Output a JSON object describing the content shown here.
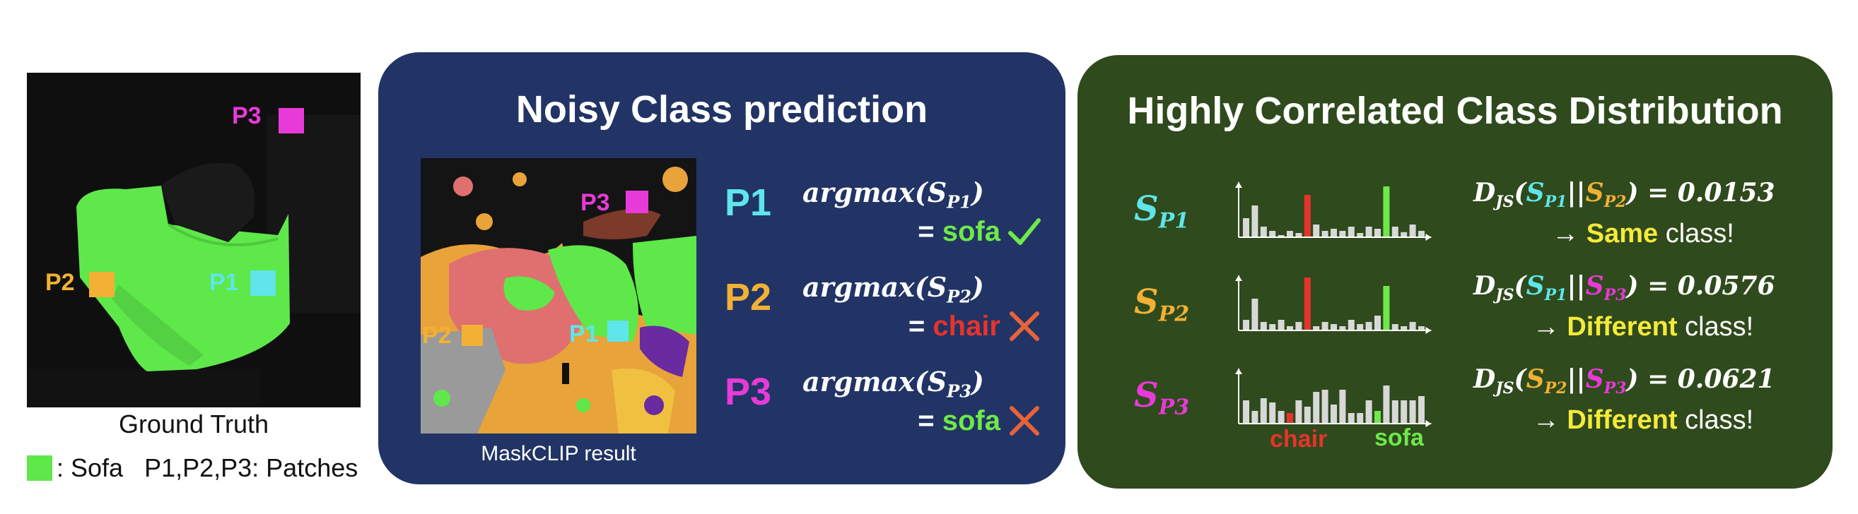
{
  "ground_truth": {
    "caption": "Ground Truth",
    "patches": [
      {
        "label": "P3",
        "color": "#e83ad8"
      },
      {
        "label": "P2",
        "color": "#f2b134"
      },
      {
        "label": "P1",
        "color": "#5ee6ea"
      }
    ],
    "legend": {
      "swatch_color": "#5ee84a",
      "sofa_label": ": Sofa",
      "patches_label": "P1,P2,P3: Patches"
    }
  },
  "noisy_panel": {
    "title": "Noisy Class prediction",
    "mask_caption": "MaskCLIP result",
    "mask_patches": [
      "P3",
      "P2",
      "P1"
    ],
    "predictions": [
      {
        "patch": "P1",
        "func": "argmax",
        "arg": "S",
        "sub": "P1",
        "eq": "=",
        "result": "sofa",
        "correct": true,
        "patch_color": "#5ee6ea",
        "result_color": "#6ee84a"
      },
      {
        "patch": "P2",
        "func": "argmax",
        "arg": "S",
        "sub": "P2",
        "eq": "=",
        "result": "chair",
        "correct": false,
        "patch_color": "#f2b134",
        "result_color": "#e6342b"
      },
      {
        "patch": "P3",
        "func": "argmax",
        "arg": "S",
        "sub": "P3",
        "eq": "=",
        "result": "sofa",
        "correct": false,
        "patch_color": "#e83ad8",
        "result_color": "#6ee84a"
      }
    ]
  },
  "correlated_panel": {
    "title": "Highly Correlated Class Distribution",
    "rows": [
      {
        "dist": "S",
        "dist_sub": "P1",
        "dist_color": "#5ee6ea",
        "js_symbol": "D",
        "js_sub": "JS",
        "js_a": "S",
        "js_a_sub": "P1",
        "js_a_color": "#5ee6ea",
        "js_sep": "||",
        "js_b": "S",
        "js_b_sub": "P2",
        "js_b_color": "#f2b134",
        "js_value": "= 0.0153",
        "arrow": "→",
        "word": "Same",
        "tail": "class!"
      },
      {
        "dist": "S",
        "dist_sub": "P2",
        "dist_color": "#f2b134",
        "js_symbol": "D",
        "js_sub": "JS",
        "js_a": "S",
        "js_a_sub": "P1",
        "js_a_color": "#5ee6ea",
        "js_sep": "||",
        "js_b": "S",
        "js_b_sub": "P3",
        "js_b_color": "#e83ad8",
        "js_value": "= 0.0576",
        "arrow": "→",
        "word": "Different",
        "tail": "class!"
      },
      {
        "dist": "S",
        "dist_sub": "P3",
        "dist_color": "#e83ad8",
        "js_symbol": "D",
        "js_sub": "JS",
        "js_a": "S",
        "js_a_sub": "P2",
        "js_a_color": "#f2b134",
        "js_sep": "||",
        "js_b": "S",
        "js_b_sub": "P3",
        "js_b_color": "#e83ad8",
        "js_value": "= 0.0621",
        "arrow": "→",
        "word": "Different",
        "tail": "class!"
      }
    ],
    "axis_labels": {
      "chair": "chair",
      "sofa": "sofa"
    },
    "histograms": [
      {
        "values": [
          0.45,
          0.75,
          0.25,
          0.15,
          0.05,
          0.15,
          0.1,
          1.0,
          0.3,
          0.15,
          0.2,
          0.15,
          0.25,
          0.1,
          0.25,
          0.2,
          1.2,
          0.25,
          0.12,
          0.3,
          0.15
        ],
        "highlight": {
          "7": "#e6342b",
          "16": "#6ee84a"
        }
      },
      {
        "values": [
          0.25,
          0.75,
          0.2,
          0.15,
          0.25,
          0.1,
          0.2,
          1.25,
          0.1,
          0.2,
          0.15,
          0.1,
          0.25,
          0.15,
          0.2,
          0.35,
          1.05,
          0.15,
          0.1,
          0.2,
          0.1
        ],
        "highlight": {
          "7": "#e6342b",
          "16": "#6ee84a"
        }
      },
      {
        "values": [
          0.55,
          0.3,
          0.6,
          0.5,
          0.3,
          0.25,
          0.55,
          0.4,
          0.75,
          0.8,
          0.45,
          0.8,
          0.25,
          0.25,
          0.55,
          0.3,
          0.9,
          0.55,
          0.55,
          0.55,
          0.65
        ],
        "highlight": {
          "5": "#e6342b",
          "15": "#6ee84a"
        }
      }
    ]
  }
}
